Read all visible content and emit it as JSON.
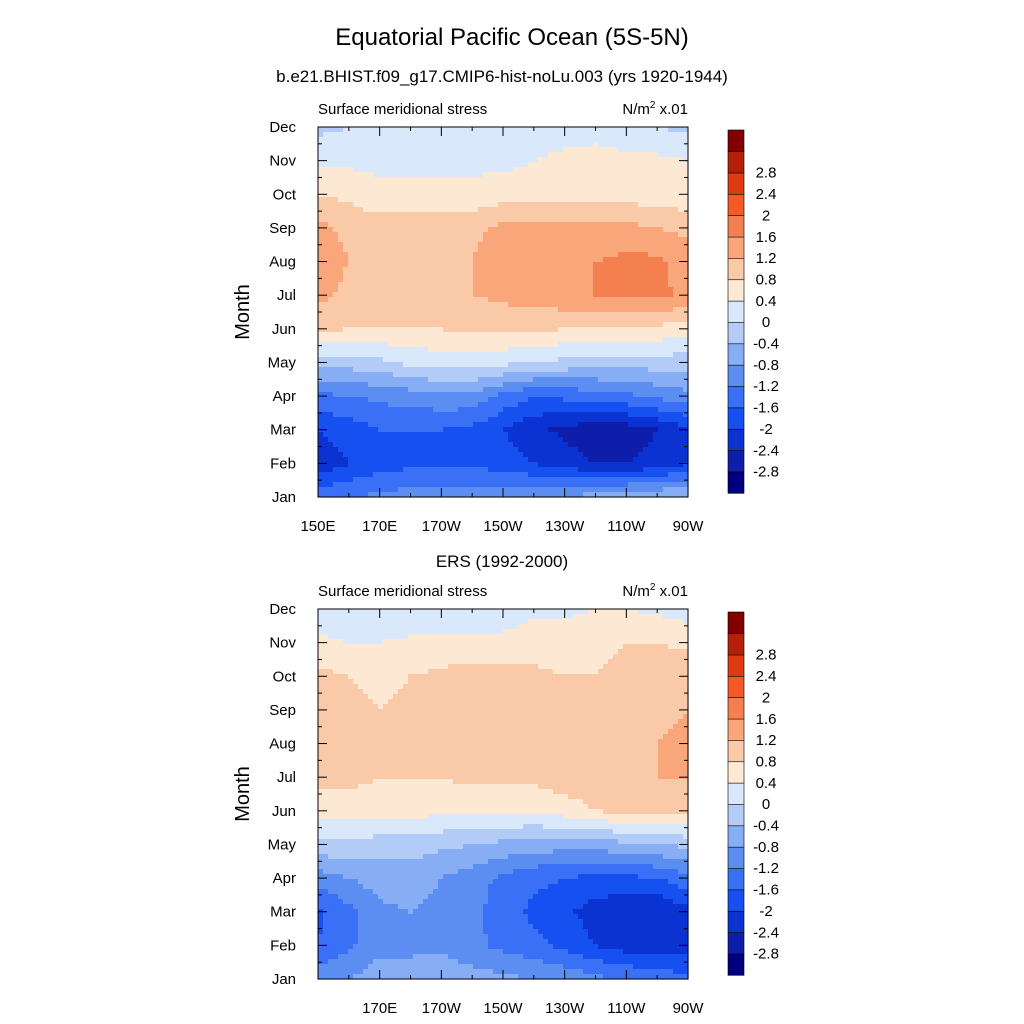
{
  "figure": {
    "title": "Equatorial Pacific Ocean (5S-5N)",
    "subtitle": "b.e21.BHIST.f09_g17.CMIP6-hist-noLu.003 (yrs 1920-1944)"
  },
  "colorbar": {
    "colors": [
      "#00007f",
      "#0f1eaa",
      "#0a33d2",
      "#1650f0",
      "#3a70f5",
      "#5c8ef2",
      "#87aef5",
      "#b3ccf7",
      "#d9e8fb",
      "#fde8d4",
      "#fac9a8",
      "#f8a67a",
      "#f5804f",
      "#f45a28",
      "#e03a12",
      "#b42008",
      "#820000"
    ],
    "tick_labels": [
      "-2.8",
      "-2.4",
      "-2",
      "-1.6",
      "-1.2",
      "-0.8",
      "-0.4",
      "0",
      "0.4",
      "0.8",
      "1.2",
      "1.6",
      "2",
      "2.4",
      "2.8"
    ]
  },
  "chart_data": [
    {
      "type": "heatmap",
      "title": "",
      "left_label": "Surface meridional stress",
      "units_label": "N/m",
      "units_sup": "2",
      "units_scale": " x.01",
      "ylabel": "Month",
      "y_ticks": [
        "Jan",
        "Feb",
        "Mar",
        "Apr",
        "May",
        "Jun",
        "Jul",
        "Aug",
        "Sep",
        "Oct",
        "Nov",
        "Dec"
      ],
      "x_ticks": [
        "150E",
        "170E",
        "170W",
        "150W",
        "130W",
        "110W",
        "90W"
      ],
      "xlim": [
        "150E",
        "90W"
      ],
      "contour_levels": [
        -2.8,
        -2.4,
        -2,
        -1.6,
        -1.2,
        -0.8,
        -0.4,
        0,
        0.4,
        0.8,
        1.2,
        1.6,
        2,
        2.4,
        2.8
      ],
      "x": [
        150,
        160,
        170,
        180,
        190,
        200,
        210,
        220,
        230,
        240,
        250,
        260,
        270
      ],
      "values": [
        [
          -1.3,
          -1.2,
          -1.1,
          -1.0,
          -1.0,
          -1.0,
          -0.9,
          -0.9,
          -0.8,
          -0.6,
          -0.5,
          -0.4,
          -0.3
        ],
        [
          -2.3,
          -2.0,
          -1.8,
          -1.7,
          -1.7,
          -1.7,
          -1.8,
          -2.0,
          -2.2,
          -2.4,
          -2.4,
          -2.3,
          -2.0
        ],
        [
          -2.0,
          -1.8,
          -1.6,
          -1.6,
          -1.6,
          -1.7,
          -2.0,
          -2.3,
          -2.5,
          -2.7,
          -2.6,
          -2.4,
          -2.1
        ],
        [
          -1.3,
          -1.2,
          -1.1,
          -1.0,
          -0.9,
          -0.9,
          -1.3,
          -1.6,
          -1.5,
          -1.4,
          -1.3,
          -1.1,
          -0.9
        ],
        [
          -0.2,
          -0.2,
          -0.1,
          0.1,
          0.2,
          0.2,
          0.1,
          0.0,
          -0.1,
          -0.2,
          -0.2,
          -0.2,
          -0.2
        ],
        [
          0.9,
          0.8,
          0.8,
          0.8,
          0.8,
          0.9,
          0.9,
          0.9,
          0.8,
          0.8,
          0.8,
          0.7,
          0.6
        ],
        [
          1.3,
          1.1,
          1.0,
          1.0,
          1.1,
          1.2,
          1.3,
          1.4,
          1.5,
          1.6,
          1.7,
          1.7,
          1.5
        ],
        [
          1.4,
          1.2,
          1.1,
          1.1,
          1.1,
          1.2,
          1.4,
          1.5,
          1.5,
          1.6,
          1.7,
          1.7,
          1.4
        ],
        [
          1.3,
          1.1,
          1.0,
          1.0,
          1.0,
          1.1,
          1.3,
          1.3,
          1.3,
          1.3,
          1.3,
          1.2,
          1.1
        ],
        [
          0.8,
          0.7,
          0.5,
          0.5,
          0.5,
          0.5,
          0.6,
          0.6,
          0.6,
          0.6,
          0.6,
          0.6,
          0.5
        ],
        [
          0.3,
          0.3,
          0.3,
          0.3,
          0.3,
          0.3,
          0.3,
          0.4,
          0.5,
          0.6,
          0.5,
          0.5,
          0.4
        ],
        [
          -0.1,
          0.0,
          0.1,
          0.1,
          0.1,
          0.1,
          0.2,
          0.2,
          0.2,
          0.2,
          0.1,
          0.0,
          -0.1
        ]
      ]
    },
    {
      "type": "heatmap",
      "title": "ERS (1992-2000)",
      "left_label": "Surface meridional stress",
      "units_label": "N/m",
      "units_sup": "2",
      "units_scale": " x.01",
      "ylabel": "Month",
      "y_ticks": [
        "Jan",
        "Feb",
        "Mar",
        "Apr",
        "May",
        "Jun",
        "Jul",
        "Aug",
        "Sep",
        "Oct",
        "Nov",
        "Dec"
      ],
      "x_ticks": [
        "170E",
        "170W",
        "150W",
        "130W",
        "110W",
        "90W"
      ],
      "xlim": [
        "150E",
        "90W"
      ],
      "contour_levels": [
        -2.8,
        -2.4,
        -2,
        -1.6,
        -1.2,
        -0.8,
        -0.4,
        0,
        0.4,
        0.8,
        1.2,
        1.6,
        2,
        2.4,
        2.8
      ],
      "x": [
        150,
        160,
        170,
        180,
        190,
        200,
        210,
        220,
        230,
        240,
        250,
        260,
        270
      ],
      "values": [
        [
          -0.9,
          -0.8,
          -0.6,
          -0.6,
          -0.5,
          -0.6,
          -0.7,
          -0.8,
          -0.9,
          -1.1,
          -1.2,
          -1.3,
          -1.5
        ],
        [
          -1.6,
          -1.3,
          -0.9,
          -0.9,
          -0.9,
          -1.1,
          -1.3,
          -1.5,
          -1.7,
          -2.0,
          -2.2,
          -2.3,
          -2.2
        ],
        [
          -1.7,
          -1.3,
          -0.9,
          -0.8,
          -0.9,
          -1.1,
          -1.4,
          -1.7,
          -1.9,
          -2.2,
          -2.3,
          -2.4,
          -2.1
        ],
        [
          -1.0,
          -0.8,
          -0.6,
          -0.6,
          -0.8,
          -1.0,
          -1.3,
          -1.5,
          -1.6,
          -1.7,
          -1.7,
          -1.6,
          -1.3
        ],
        [
          -0.1,
          -0.1,
          -0.2,
          -0.2,
          -0.3,
          -0.4,
          -0.5,
          -0.6,
          -0.6,
          -0.6,
          -0.5,
          -0.4,
          -0.3
        ],
        [
          0.6,
          0.6,
          0.6,
          0.6,
          0.5,
          0.5,
          0.5,
          0.5,
          0.6,
          0.8,
          0.9,
          1.0,
          1.0
        ],
        [
          0.9,
          0.9,
          0.8,
          0.8,
          0.8,
          0.9,
          0.9,
          0.9,
          1.0,
          1.1,
          1.2,
          1.2,
          1.2
        ],
        [
          1.0,
          0.9,
          0.8,
          0.8,
          0.9,
          1.0,
          1.1,
          1.0,
          1.0,
          1.0,
          1.1,
          1.2,
          1.3
        ],
        [
          1.1,
          0.9,
          0.8,
          0.9,
          1.0,
          1.1,
          1.1,
          1.0,
          0.9,
          0.9,
          1.0,
          1.1,
          1.2
        ],
        [
          0.9,
          0.8,
          0.7,
          0.8,
          0.9,
          1.0,
          1.0,
          0.9,
          0.8,
          0.8,
          0.9,
          1.0,
          1.1
        ],
        [
          0.5,
          0.4,
          0.4,
          0.5,
          0.5,
          0.5,
          0.5,
          0.6,
          0.6,
          0.7,
          0.8,
          0.8,
          0.7
        ],
        [
          0.1,
          0.0,
          0.0,
          0.0,
          0.1,
          0.1,
          0.2,
          0.3,
          0.3,
          0.4,
          0.4,
          0.3,
          0.2
        ]
      ]
    }
  ]
}
